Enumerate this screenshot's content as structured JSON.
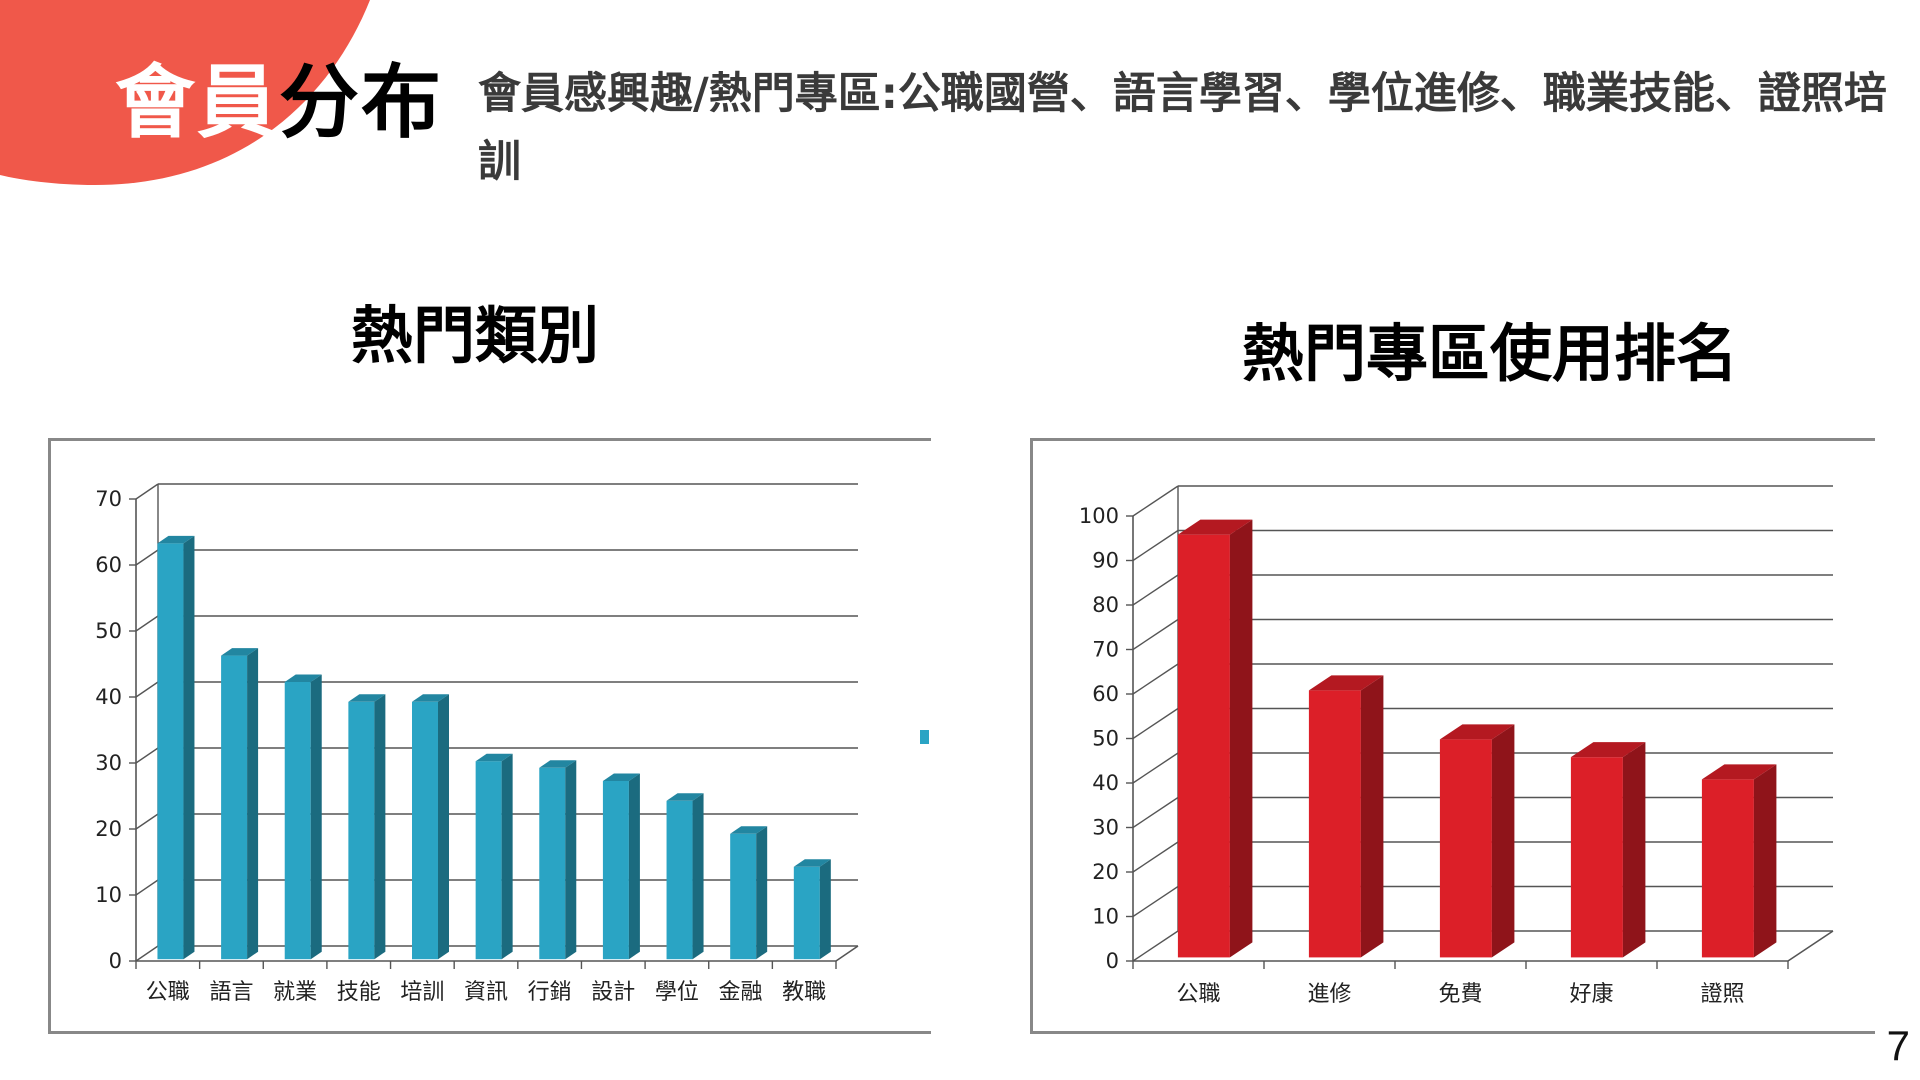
{
  "header": {
    "title_part1": "會員",
    "title_part2": "分布",
    "subtitle": "會員感興趣/熱門專區:公職國營、語言學習、學位進修、職業技能、證照培訓",
    "accent_color": "#f0584a"
  },
  "page_number": "7",
  "chart_data": [
    {
      "type": "bar",
      "title": "熱門類別",
      "categories": [
        "公職",
        "語言",
        "就業",
        "技能",
        "培訓",
        "資訊",
        "行銷",
        "設計",
        "學位",
        "金融",
        "教職"
      ],
      "values": [
        63,
        46,
        42,
        39,
        39,
        30,
        29,
        27,
        24,
        19,
        14
      ],
      "ylim": [
        0,
        70
      ],
      "yticks": [
        0,
        10,
        20,
        30,
        40,
        50,
        60,
        70
      ],
      "grid": true,
      "color": "#2aa4c4"
    },
    {
      "type": "bar",
      "title": "熱門專區使用排名",
      "categories": [
        "公職",
        "進修",
        "免費",
        "好康",
        "證照"
      ],
      "values": [
        95,
        60,
        49,
        45,
        40
      ],
      "ylim": [
        0,
        100
      ],
      "yticks": [
        0,
        10,
        20,
        30,
        40,
        50,
        60,
        70,
        80,
        90,
        100
      ],
      "grid": true,
      "color": "#dc1f28"
    }
  ]
}
